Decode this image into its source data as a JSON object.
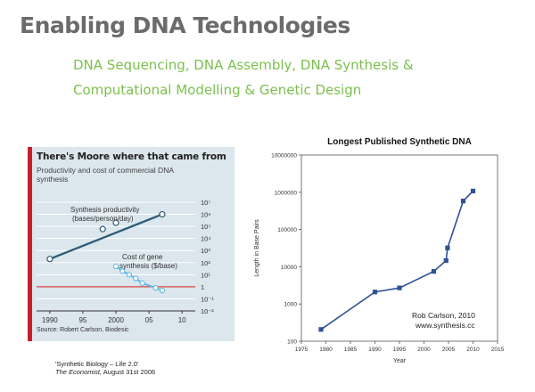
{
  "slide": {
    "title": "Enabling DNA Technologies",
    "subtitle_line1": "DNA Sequencing, DNA Assembly, DNA Synthesis &",
    "subtitle_line2": "Computational Modelling & Genetic Design",
    "accent_color": "#7cc04e",
    "title_color": "#6b6b6b"
  },
  "citation": {
    "line1": "'Synthetic Biology – Life 2.0'",
    "magazine": "The Economist,",
    "date": " August 31st 2006"
  },
  "chart_data": [
    {
      "type": "line",
      "title": "There's Moore where that came from",
      "subtitle": "Productivity and cost of commercial DNA synthesis",
      "source": "Source: Robert Carlson, Biodesic",
      "y_scale": "log",
      "ylim": [
        0.01,
        10000000
      ],
      "xlim": [
        1988,
        2012
      ],
      "x_ticks": [
        "1990",
        "95",
        "2000",
        "05",
        "10"
      ],
      "x_tick_values": [
        1990,
        1995,
        2000,
        2005,
        2010
      ],
      "y_ticks": [
        "10⁷",
        "10⁶",
        "10⁵",
        "10⁴",
        "10³",
        "10²",
        "10¹",
        "1",
        "10⁻¹",
        "10⁻²"
      ],
      "y_tick_values": [
        10000000,
        1000000,
        100000,
        10000,
        1000,
        100,
        10,
        1,
        0.1,
        0.01
      ],
      "background": "#dbe6ed",
      "reference_line": 1,
      "series": [
        {
          "label": "Synthesis productivity (bases/person/day)",
          "label_line1": "Synthesis productivity",
          "label_line2": "(bases/person/day)",
          "color": "#2f5d78",
          "x": [
            1990,
            1998,
            2000,
            2007
          ],
          "values": [
            200,
            60000,
            200000,
            1000000
          ],
          "marker_points": [
            [
              1990,
              200
            ],
            [
              1998,
              60000
            ],
            [
              2000,
              200000
            ],
            [
              2007,
              1000000
            ]
          ]
        },
        {
          "label": "Cost of gene synthesis ($/base)",
          "label_line1": "Cost of gene",
          "label_line2": "synthesis ($/base)",
          "color": "#5fb8e0",
          "x": [
            2000,
            2001,
            2002,
            2003,
            2004,
            2006,
            2007
          ],
          "values": [
            50,
            20,
            10,
            5,
            2,
            0.8,
            0.5
          ]
        }
      ]
    },
    {
      "type": "line",
      "title": "Longest Published Synthetic DNA",
      "xlabel": "Year",
      "ylabel": "Length in Base Pairs",
      "y_scale": "log",
      "xlim": [
        1975,
        2015
      ],
      "ylim": [
        100,
        10000000
      ],
      "x_ticks": [
        1975,
        1980,
        1985,
        1990,
        1995,
        2000,
        2005,
        2010,
        2015
      ],
      "y_ticks": [
        100,
        1000,
        10000,
        100000,
        1000000,
        10000000
      ],
      "color": "#2f5196",
      "annotation_line1": "Rob Carlson, 2010",
      "annotation_line2": "www.synthesis.cc",
      "x": [
        1979,
        1990,
        1995,
        2002,
        2004.5,
        2004.8,
        2008,
        2010
      ],
      "values": [
        207,
        2100,
        2700,
        7500,
        14600,
        32000,
        583000,
        1080000
      ]
    }
  ]
}
